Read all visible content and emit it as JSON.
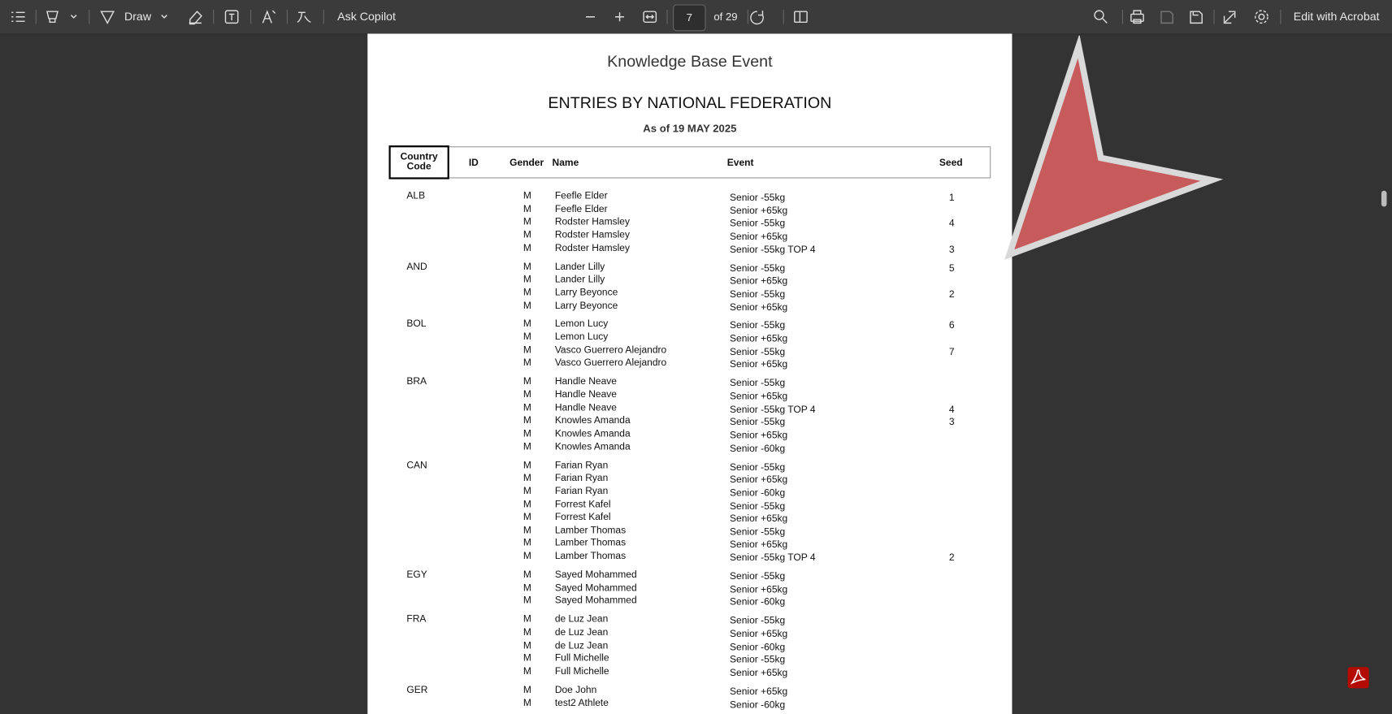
{
  "toolbar": {
    "draw": "Draw",
    "copilot": "Ask Copilot",
    "page": "7",
    "page_count": "of 29",
    "edit": "Edit with Acrobat"
  },
  "document": {
    "event_title": "Knowledge Base Event",
    "heading": "ENTRIES BY NATIONAL FEDERATION",
    "date": "As of 19 MAY 2025",
    "table": {
      "headers": {
        "country": "Country Code",
        "id": "ID",
        "gender": "Gender",
        "name": "Name",
        "event": "Event",
        "seed": "Seed"
      },
      "groups": [
        {
          "country": "ALB",
          "rows": [
            {
              "gender": "M",
              "name": "Feefle Elder",
              "event": "Senior -55kg",
              "seed": 1
            },
            {
              "gender": "M",
              "name": "Feefle Elder",
              "event": "Senior +65kg"
            },
            {
              "gender": "M",
              "name": "Rodster Hamsley",
              "event": "Senior -55kg",
              "seed": 4
            },
            {
              "gender": "M",
              "name": "Rodster Hamsley",
              "event": "Senior +65kg"
            },
            {
              "gender": "M",
              "name": "Rodster Hamsley",
              "event": "Senior -55kg TOP 4",
              "seed": 3
            }
          ]
        },
        {
          "country": "AND",
          "rows": [
            {
              "gender": "M",
              "name": "Lander Lilly",
              "event": "Senior -55kg",
              "seed": 5
            },
            {
              "gender": "M",
              "name": "Lander Lilly",
              "event": "Senior +65kg"
            },
            {
              "gender": "M",
              "name": "Larry Beyonce",
              "event": "Senior -55kg",
              "seed": 2
            },
            {
              "gender": "M",
              "name": "Larry Beyonce",
              "event": "Senior +65kg"
            }
          ]
        },
        {
          "country": "BOL",
          "rows": [
            {
              "gender": "M",
              "name": "Lemon Lucy",
              "event": "Senior -55kg",
              "seed": 6
            },
            {
              "gender": "M",
              "name": "Lemon Lucy",
              "event": "Senior +65kg"
            },
            {
              "gender": "M",
              "name": "Vasco Guerrero Alejandro",
              "event": "Senior -55kg",
              "seed": 7
            },
            {
              "gender": "M",
              "name": "Vasco Guerrero Alejandro",
              "event": "Senior +65kg"
            }
          ]
        },
        {
          "country": "BRA",
          "rows": [
            {
              "gender": "M",
              "name": "Handle Neave",
              "event": "Senior -55kg"
            },
            {
              "gender": "M",
              "name": "Handle Neave",
              "event": "Senior +65kg"
            },
            {
              "gender": "M",
              "name": "Handle Neave",
              "event": "Senior -55kg TOP 4",
              "seed": 4
            },
            {
              "gender": "M",
              "name": "Knowles Amanda",
              "event": "Senior -55kg",
              "seed": 3
            },
            {
              "gender": "M",
              "name": "Knowles Amanda",
              "event": "Senior +65kg"
            },
            {
              "gender": "M",
              "name": "Knowles Amanda",
              "event": "Senior -60kg"
            }
          ]
        },
        {
          "country": "CAN",
          "rows": [
            {
              "gender": "M",
              "name": "Farian Ryan",
              "event": "Senior -55kg"
            },
            {
              "gender": "M",
              "name": "Farian Ryan",
              "event": "Senior +65kg"
            },
            {
              "gender": "M",
              "name": "Farian Ryan",
              "event": "Senior -60kg"
            },
            {
              "gender": "M",
              "name": "Forrest Kafel",
              "event": "Senior -55kg"
            },
            {
              "gender": "M",
              "name": "Forrest Kafel",
              "event": "Senior +65kg"
            },
            {
              "gender": "M",
              "name": "Lamber Thomas",
              "event": "Senior -55kg"
            },
            {
              "gender": "M",
              "name": "Lamber Thomas",
              "event": "Senior +65kg"
            },
            {
              "gender": "M",
              "name": "Lamber Thomas",
              "event": "Senior -55kg TOP 4",
              "seed": 2
            }
          ]
        },
        {
          "country": "EGY",
          "rows": [
            {
              "gender": "M",
              "name": "Sayed Mohammed",
              "event": "Senior -55kg"
            },
            {
              "gender": "M",
              "name": "Sayed Mohammed",
              "event": "Senior +65kg"
            },
            {
              "gender": "M",
              "name": "Sayed Mohammed",
              "event": "Senior -60kg"
            }
          ]
        },
        {
          "country": "FRA",
          "rows": [
            {
              "gender": "M",
              "name": "de Luz Jean",
              "event": "Senior -55kg"
            },
            {
              "gender": "M",
              "name": "de Luz Jean",
              "event": "Senior +65kg"
            },
            {
              "gender": "M",
              "name": "de Luz Jean",
              "event": "Senior -60kg"
            },
            {
              "gender": "M",
              "name": "Full Michelle",
              "event": "Senior -55kg"
            },
            {
              "gender": "M",
              "name": "Full Michelle",
              "event": "Senior +65kg"
            }
          ]
        },
        {
          "country": "GER",
          "rows": [
            {
              "gender": "M",
              "name": "Doe John",
              "event": "Senior +65kg"
            },
            {
              "gender": "M",
              "name": "test2 Athlete",
              "event": "Senior -60kg"
            }
          ]
        }
      ]
    }
  }
}
